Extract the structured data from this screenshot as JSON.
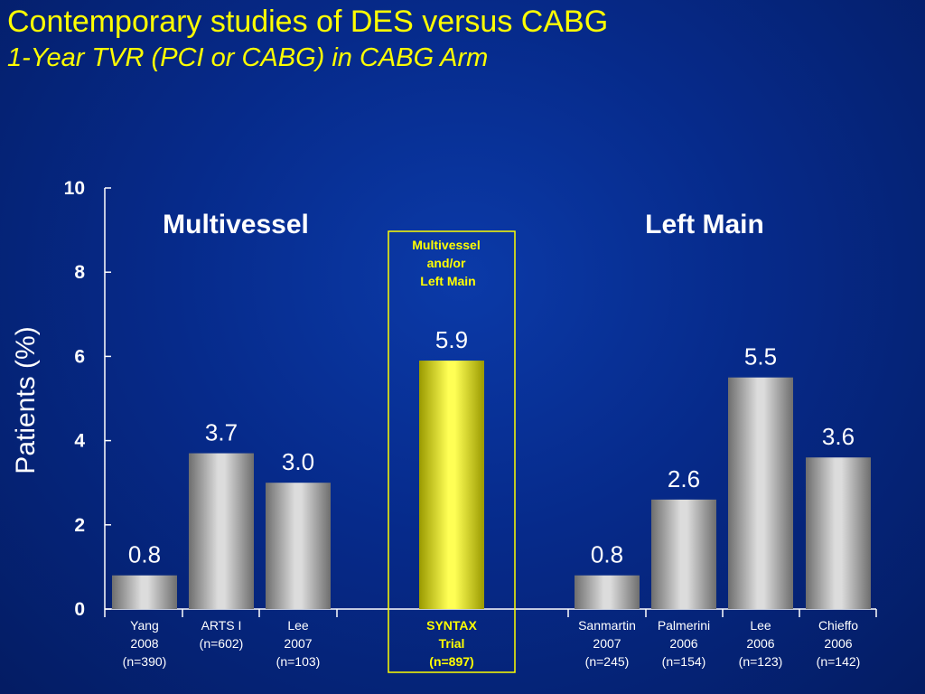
{
  "title": "Contemporary studies of DES versus CABG",
  "subtitle": "1-Year TVR (PCI or CABG) in CABG Arm",
  "chart_data": {
    "type": "bar",
    "ylabel": "Patients (%)",
    "ylim": [
      0,
      10
    ],
    "yticks": [
      "0",
      "2",
      "4",
      "6",
      "8",
      "10"
    ],
    "grid": false,
    "categories": [
      [
        "Yang",
        "2008",
        "(n=390)"
      ],
      [
        "ARTS I",
        "(n=602)"
      ],
      [
        "Lee",
        "2007",
        "(n=103)"
      ],
      [
        "SYNTAX",
        "Trial",
        "(n=897)"
      ],
      [
        "Sanmartin",
        "2007",
        "(n=245)"
      ],
      [
        "Palmerini",
        "2006",
        "(n=154)"
      ],
      [
        "Lee",
        "2006",
        "(n=123)"
      ],
      [
        "Chieffo",
        "2006",
        "(n=142)"
      ]
    ],
    "values": [
      0.8,
      3.7,
      3.0,
      5.9,
      0.8,
      2.6,
      5.5,
      3.6
    ],
    "value_labels": [
      "0.8",
      "3.7",
      "3.0",
      "5.9",
      "0.8",
      "2.6",
      "5.5",
      "3.6"
    ],
    "highlighted_index": 3,
    "group_labels": [
      "Multivessel",
      "Left Main"
    ],
    "highlight_annotation": [
      "Multivessel",
      "and/or",
      "Left Main"
    ],
    "colors": {
      "bar": "#b0b0b0",
      "highlight": "#ffff00",
      "text": "#ffffff",
      "accent": "#ffff00"
    }
  }
}
